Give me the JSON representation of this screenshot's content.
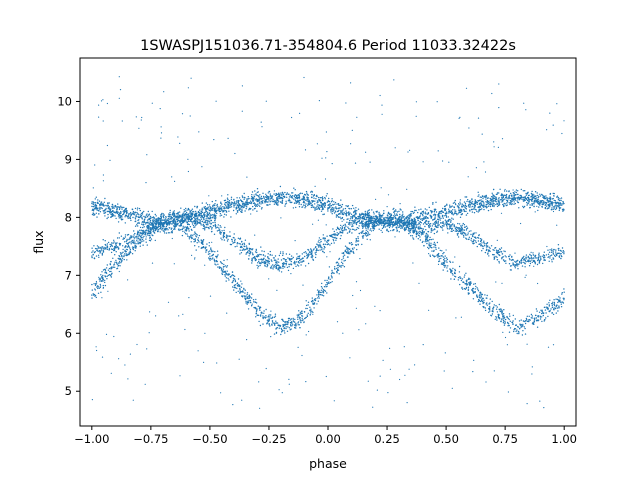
{
  "chart_data": {
    "type": "scatter",
    "title": "1SWASPJ151036.71-354804.6 Period 11033.32422s",
    "xlabel": "phase",
    "ylabel": "flux",
    "xlim": [
      -1.05,
      1.05
    ],
    "ylim": [
      4.4,
      10.75
    ],
    "xticks": [
      -1.0,
      -0.75,
      -0.5,
      -0.25,
      0.0,
      0.25,
      0.5,
      0.75,
      1.0
    ],
    "xtick_labels": [
      "−1.00",
      "−0.75",
      "−0.50",
      "−0.25",
      "0.00",
      "0.25",
      "0.50",
      "0.75",
      "1.00"
    ],
    "yticks": [
      5,
      6,
      7,
      8,
      9,
      10
    ],
    "ytick_labels": [
      "5",
      "6",
      "7",
      "8",
      "9",
      "10"
    ],
    "grid": false,
    "marker_color": "#1f77b4",
    "series": [
      {
        "description_key": "upper-band",
        "x": [
          -1.0,
          -0.9,
          -0.8,
          -0.7,
          -0.6,
          -0.5,
          -0.4,
          -0.3,
          -0.2,
          -0.1,
          0.0,
          0.1,
          0.2,
          0.3,
          0.4,
          0.5,
          0.6,
          0.7,
          0.8,
          0.9,
          1.0
        ],
        "y": [
          8.2,
          8.1,
          8.0,
          7.9,
          8.0,
          8.1,
          8.2,
          8.3,
          8.35,
          8.3,
          8.2,
          8.05,
          7.95,
          7.9,
          8.0,
          8.1,
          8.2,
          8.3,
          8.35,
          8.3,
          8.2
        ]
      },
      {
        "description_key": "middle-band",
        "x": [
          -1.0,
          -0.9,
          -0.8,
          -0.7,
          -0.6,
          -0.5,
          -0.4,
          -0.3,
          -0.2,
          -0.1,
          0.0,
          0.1,
          0.2,
          0.3,
          0.4,
          0.5,
          0.6,
          0.7,
          0.8,
          0.9,
          1.0
        ],
        "y": [
          7.4,
          7.5,
          7.7,
          7.9,
          8.0,
          7.9,
          7.6,
          7.3,
          7.2,
          7.3,
          7.6,
          7.9,
          8.0,
          7.9,
          7.8,
          7.9,
          7.7,
          7.4,
          7.2,
          7.3,
          7.4
        ]
      },
      {
        "description_key": "lower-band",
        "x": [
          -1.0,
          -0.9,
          -0.8,
          -0.7,
          -0.6,
          -0.5,
          -0.4,
          -0.3,
          -0.2,
          -0.1,
          0.0,
          0.1,
          0.2,
          0.3,
          0.4,
          0.5,
          0.6,
          0.7,
          0.8,
          0.9,
          1.0
        ],
        "y": [
          6.7,
          7.2,
          7.6,
          7.9,
          7.8,
          7.4,
          6.9,
          6.4,
          6.1,
          6.3,
          6.9,
          7.5,
          7.9,
          8.0,
          7.7,
          7.2,
          6.8,
          6.4,
          6.1,
          6.3,
          6.6
        ]
      }
    ]
  }
}
